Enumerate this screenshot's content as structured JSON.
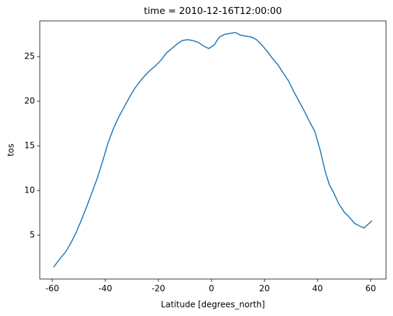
{
  "chart_data": {
    "type": "line",
    "title": "time = 2010-12-16T12:00:00",
    "xlabel": "Latitude [degrees_north]",
    "ylabel": "tos",
    "x": [
      -59.5,
      -57,
      -55,
      -53,
      -51,
      -49,
      -47,
      -45,
      -43,
      -41,
      -39,
      -37,
      -35,
      -33,
      -31,
      -29,
      -27,
      -25,
      -23,
      -21,
      -19,
      -17,
      -15,
      -13,
      -11,
      -9,
      -7,
      -5,
      -3,
      -1,
      1,
      3,
      5,
      7,
      9,
      11,
      13,
      15,
      17,
      19,
      21,
      23,
      25,
      27,
      29,
      31,
      33,
      35,
      37,
      39,
      41,
      43,
      44.5,
      46,
      48,
      50,
      52,
      54,
      56,
      57.5,
      59,
      60.5
    ],
    "series": [
      {
        "name": "tos",
        "color": "#1f77b4",
        "values": [
          1.4,
          2.4,
          3.1,
          4.1,
          5.3,
          6.7,
          8.2,
          9.8,
          11.4,
          13.3,
          15.3,
          16.9,
          18.2,
          19.3,
          20.4,
          21.4,
          22.2,
          22.9,
          23.5,
          24.0,
          24.6,
          25.4,
          25.9,
          26.4,
          26.8,
          26.9,
          26.8,
          26.6,
          26.2,
          25.9,
          26.3,
          27.2,
          27.5,
          27.6,
          27.7,
          27.4,
          27.3,
          27.2,
          26.9,
          26.3,
          25.6,
          24.8,
          24.1,
          23.2,
          22.3,
          21.1,
          20.0,
          18.9,
          17.7,
          16.6,
          14.5,
          12.0,
          10.6,
          9.8,
          8.5,
          7.6,
          7.0,
          6.3,
          6.0,
          5.8,
          6.2,
          6.6
        ]
      }
    ],
    "xlim": [
      -64.7,
      65.8
    ],
    "xticks": [
      -60,
      -40,
      -20,
      0,
      20,
      40,
      60
    ],
    "ylim": [
      0.08,
      29.0
    ],
    "yticks": [
      5,
      10,
      15,
      20,
      25
    ],
    "grid": false
  }
}
